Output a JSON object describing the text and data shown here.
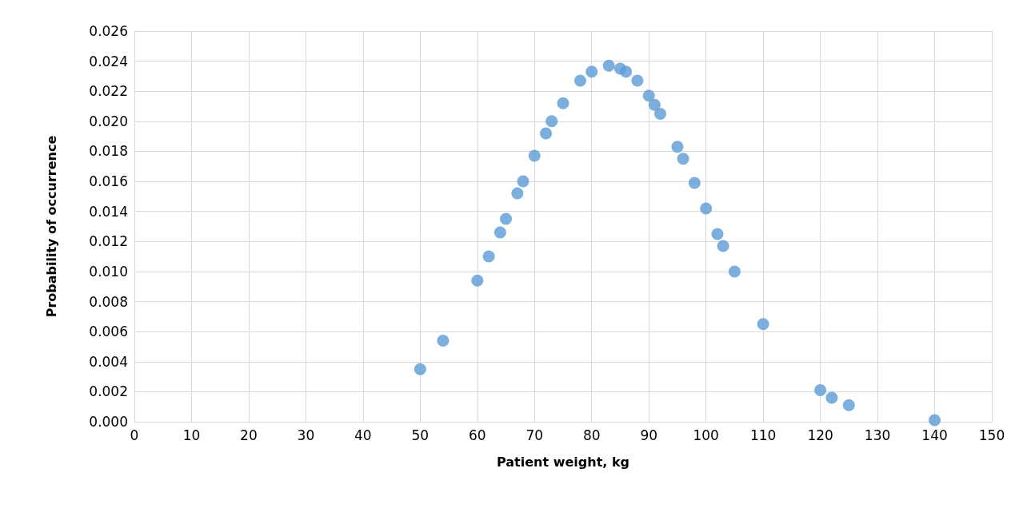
{
  "chart_data": {
    "type": "scatter",
    "xlabel": "Patient weight, kg",
    "ylabel": "Probability of occurrence",
    "x": [
      50,
      54,
      60,
      62,
      64,
      65,
      67,
      68,
      70,
      72,
      73,
      75,
      78,
      80,
      83,
      85,
      86,
      88,
      90,
      91,
      92,
      95,
      96,
      98,
      100,
      102,
      103,
      105,
      110,
      120,
      122,
      125,
      140
    ],
    "series": [
      {
        "color": "#5b9bd5",
        "values": [
          0.0035,
          0.0054,
          0.0094,
          0.011,
          0.0126,
          0.0135,
          0.0152,
          0.016,
          0.0177,
          0.0192,
          0.02,
          0.0212,
          0.0227,
          0.0233,
          0.0237,
          0.0235,
          0.0233,
          0.0227,
          0.0217,
          0.0211,
          0.0205,
          0.0183,
          0.0175,
          0.0159,
          0.0142,
          0.0125,
          0.0117,
          0.01,
          0.0065,
          0.0021,
          0.0016,
          0.0011,
          0.0001
        ]
      }
    ],
    "xlim": [
      0,
      150
    ],
    "xticks": [
      0,
      10,
      20,
      30,
      40,
      50,
      60,
      70,
      80,
      90,
      100,
      110,
      120,
      130,
      140,
      150
    ],
    "ylim": [
      0,
      0.026
    ],
    "yticks": [
      {
        "value": 0,
        "label": "0.000"
      },
      {
        "value": 0.002,
        "label": "0.002"
      },
      {
        "value": 0.004,
        "label": "0.004"
      },
      {
        "value": 0.006,
        "label": "0.006"
      },
      {
        "value": 0.008,
        "label": "0.008"
      },
      {
        "value": 0.01,
        "label": "0.010"
      },
      {
        "value": 0.012,
        "label": "0.012"
      },
      {
        "value": 0.014,
        "label": "0.014"
      },
      {
        "value": 0.016,
        "label": "0.016"
      },
      {
        "value": 0.018,
        "label": "0.018"
      },
      {
        "value": 0.02,
        "label": "0.020"
      },
      {
        "value": 0.022,
        "label": "0.022"
      },
      {
        "value": 0.024,
        "label": "0.024"
      },
      {
        "value": 0.026,
        "label": "0.026"
      }
    ],
    "grid": true,
    "marker": "circle"
  }
}
